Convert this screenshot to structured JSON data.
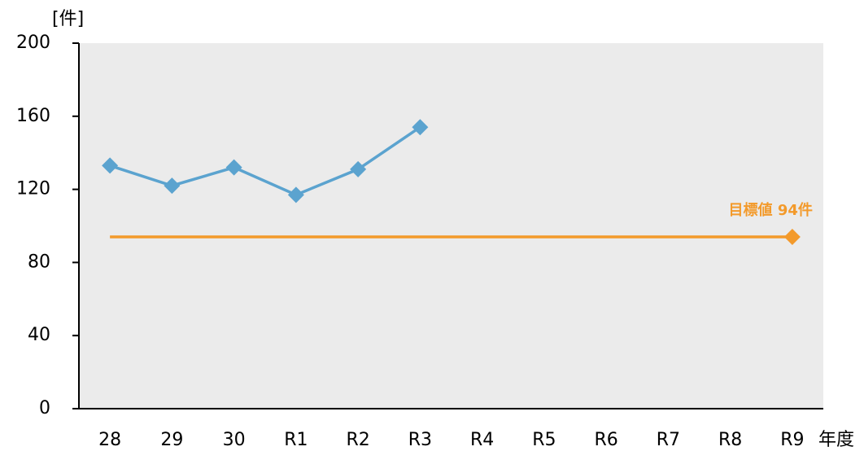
{
  "chart_data": {
    "type": "line",
    "y_label": "[件]",
    "x_label": "年度",
    "categories": [
      "28",
      "29",
      "30",
      "R1",
      "R2",
      "R3",
      "R4",
      "R5",
      "R6",
      "R7",
      "R8",
      "R9"
    ],
    "series": [
      {
        "color": "#5ba3cf",
        "marker": "all",
        "values": [
          133,
          122,
          132,
          117,
          131,
          154,
          null,
          null,
          null,
          null,
          null,
          null
        ]
      },
      {
        "color": "#f39a2b",
        "marker": "last",
        "values": [
          94,
          94,
          94,
          94,
          94,
          94,
          94,
          94,
          94,
          94,
          94,
          94
        ]
      }
    ],
    "annotations": [
      {
        "text": "目標値 94件",
        "color": "#f39a2b"
      }
    ],
    "ylim": [
      0,
      200
    ],
    "yticks": [
      0,
      40,
      80,
      120,
      160,
      200
    ],
    "plot_background": "#ebebeb"
  }
}
